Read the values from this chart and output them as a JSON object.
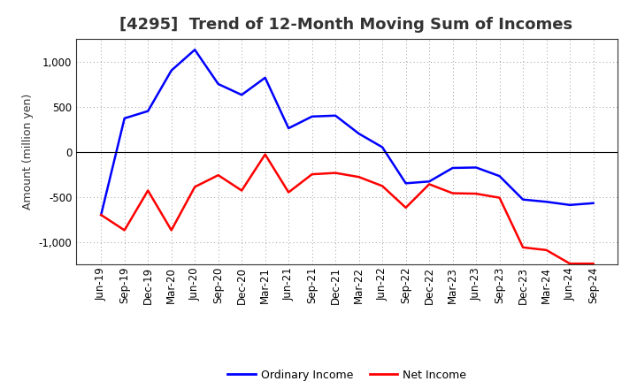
{
  "title": "[4295]  Trend of 12-Month Moving Sum of Incomes",
  "ylabel": "Amount (million yen)",
  "background_color": "#ffffff",
  "grid_color": "#999999",
  "x_labels": [
    "Jun-19",
    "Sep-19",
    "Dec-19",
    "Mar-20",
    "Jun-20",
    "Sep-20",
    "Dec-20",
    "Mar-21",
    "Jun-21",
    "Sep-21",
    "Dec-21",
    "Mar-22",
    "Jun-22",
    "Sep-22",
    "Dec-22",
    "Mar-23",
    "Jun-23",
    "Sep-23",
    "Dec-23",
    "Mar-24",
    "Jun-24",
    "Sep-24"
  ],
  "ordinary_income": [
    -700,
    370,
    450,
    900,
    1130,
    750,
    630,
    820,
    260,
    390,
    400,
    200,
    50,
    -350,
    -330,
    -180,
    -175,
    -270,
    -530,
    -555,
    -590,
    -570
  ],
  "net_income": [
    -700,
    -870,
    -430,
    -870,
    -390,
    -260,
    -430,
    -30,
    -450,
    -250,
    -235,
    -280,
    -380,
    -620,
    -360,
    -460,
    -465,
    -510,
    -1060,
    -1090,
    -1240,
    -1240
  ],
  "ordinary_color": "#0000ff",
  "net_color": "#ff0000",
  "ylim": [
    -1250,
    1250
  ],
  "yticks": [
    -1000,
    -500,
    0,
    500,
    1000
  ],
  "title_fontsize": 13,
  "title_color": "#333333",
  "tick_fontsize": 8.5,
  "ylabel_fontsize": 9,
  "legend_labels": [
    "Ordinary Income",
    "Net Income"
  ],
  "legend_fontsize": 9
}
